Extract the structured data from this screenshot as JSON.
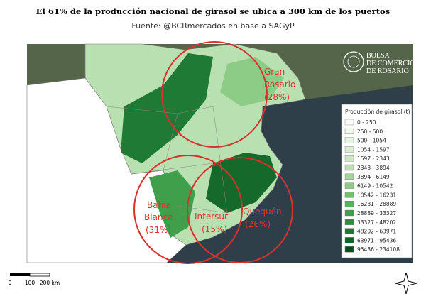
{
  "header": {
    "title": "El 61% de la producción nacional de girasol se ubica a 300 km de los puertos",
    "subtitle": "Fuente: @BCRmercados en base a SAGyP"
  },
  "logo": [
    "BOLSA",
    "DE COMERCIO",
    "DE ROSARIO"
  ],
  "zones": [
    {
      "lines": [
        "Gran",
        "Rosario"
      ],
      "share": "(28%)"
    },
    {
      "lines": [
        "Bahía",
        "Blanca"
      ],
      "share": "(31%)"
    },
    {
      "lines": [
        "Intersur"
      ],
      "share": "(15%)"
    },
    {
      "lines": [
        "Quequén"
      ],
      "share": "(26%)"
    }
  ],
  "legend": {
    "title": "Producción de girasol (t)",
    "items": [
      {
        "label": "0 - 250",
        "color": "#fbfdf9"
      },
      {
        "label": "250 - 500",
        "color": "#f1f8ec"
      },
      {
        "label": "500 - 1054",
        "color": "#e7f4e1"
      },
      {
        "label": "1054 - 1597",
        "color": "#dbefd4"
      },
      {
        "label": "1597 - 2343",
        "color": "#cbe8c3"
      },
      {
        "label": "2343 - 3894",
        "color": "#b8e0b0"
      },
      {
        "label": "3894 - 6149",
        "color": "#a2d69b"
      },
      {
        "label": "6149 - 10542",
        "color": "#8ccc86"
      },
      {
        "label": "10542 - 16231",
        "color": "#73c073"
      },
      {
        "label": "16231 - 28889",
        "color": "#59b15f"
      },
      {
        "label": "28889 - 33327",
        "color": "#40a04c"
      },
      {
        "label": "33327 - 48202",
        "color": "#2d8e3f"
      },
      {
        "label": "48202 - 63971",
        "color": "#1d7c33"
      },
      {
        "label": "63971 - 95436",
        "color": "#0e6627"
      },
      {
        "label": "95436 - 234108",
        "color": "#03501d"
      }
    ]
  },
  "scale": [
    "0",
    "100",
    "200 km"
  ]
}
